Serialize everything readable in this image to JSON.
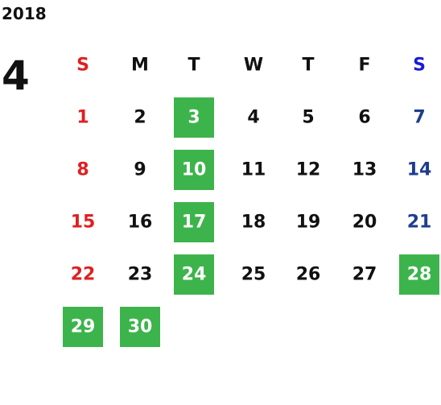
{
  "year": "2018",
  "month": "4",
  "highlight_color": "#3cb44b",
  "weekdays": [
    {
      "label": "S",
      "color": "#e02020",
      "day_color": "#e02020"
    },
    {
      "label": "M",
      "color": "#111111",
      "day_color": "#111111"
    },
    {
      "label": "T",
      "color": "#111111",
      "day_color": "#111111"
    },
    {
      "label": "W",
      "color": "#111111",
      "day_color": "#111111"
    },
    {
      "label": "T",
      "color": "#111111",
      "day_color": "#111111"
    },
    {
      "label": "F",
      "color": "#111111",
      "day_color": "#111111"
    },
    {
      "label": "S",
      "color": "#1a1adb",
      "day_color": "#1f3d8f"
    }
  ],
  "weeks": [
    [
      {
        "day": 1,
        "highlight": false
      },
      {
        "day": 2,
        "highlight": false
      },
      {
        "day": 3,
        "highlight": true
      },
      {
        "day": 4,
        "highlight": false
      },
      {
        "day": 5,
        "highlight": false
      },
      {
        "day": 6,
        "highlight": false
      },
      {
        "day": 7,
        "highlight": false
      }
    ],
    [
      {
        "day": 8,
        "highlight": false
      },
      {
        "day": 9,
        "highlight": false
      },
      {
        "day": 10,
        "highlight": true
      },
      {
        "day": 11,
        "highlight": false
      },
      {
        "day": 12,
        "highlight": false
      },
      {
        "day": 13,
        "highlight": false
      },
      {
        "day": 14,
        "highlight": false
      }
    ],
    [
      {
        "day": 15,
        "highlight": false
      },
      {
        "day": 16,
        "highlight": false
      },
      {
        "day": 17,
        "highlight": true
      },
      {
        "day": 18,
        "highlight": false
      },
      {
        "day": 19,
        "highlight": false
      },
      {
        "day": 20,
        "highlight": false
      },
      {
        "day": 21,
        "highlight": false
      }
    ],
    [
      {
        "day": 22,
        "highlight": false
      },
      {
        "day": 23,
        "highlight": false
      },
      {
        "day": 24,
        "highlight": true
      },
      {
        "day": 25,
        "highlight": false
      },
      {
        "day": 26,
        "highlight": false
      },
      {
        "day": 27,
        "highlight": false
      },
      {
        "day": 28,
        "highlight": true
      }
    ],
    [
      {
        "day": 29,
        "highlight": true
      },
      {
        "day": 30,
        "highlight": true
      },
      null,
      null,
      null,
      null,
      null
    ]
  ]
}
